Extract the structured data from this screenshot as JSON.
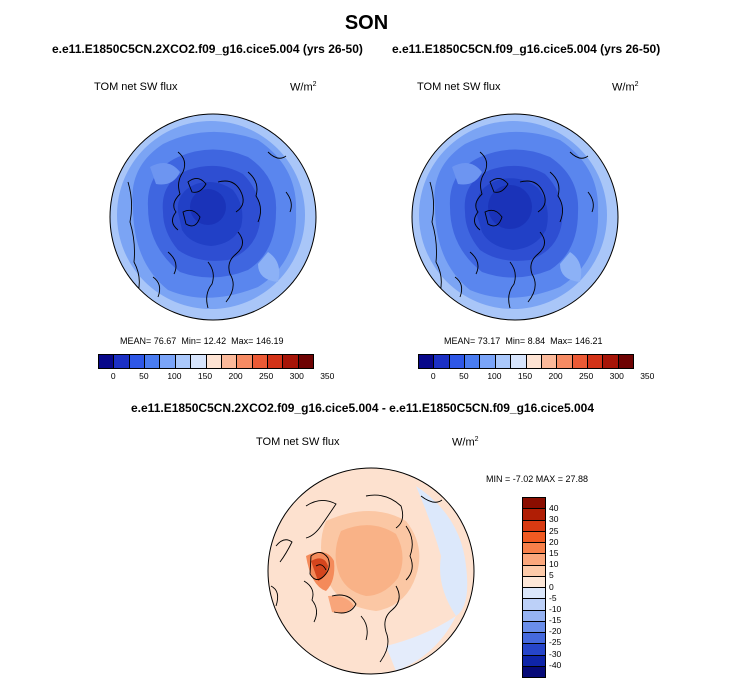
{
  "title": "SON",
  "panels": [
    {
      "case_title": "e.e11.E1850C5CN.2XCO2.f09_g16.cice5.004 (yrs 26-50)",
      "variable": "TOM net SW flux",
      "units_base": "W/m",
      "units_exp": "2",
      "stats": {
        "mean_label": "MEAN=",
        "mean": "76.67",
        "min_label": "Min=",
        "min": "12.42",
        "max_label": "Max=",
        "max": "146.19"
      }
    },
    {
      "case_title": "e.e11.E1850C5CN.f09_g16.cice5.004 (yrs 26-50)",
      "variable": "TOM net SW flux",
      "units_base": "W/m",
      "units_exp": "2",
      "stats": {
        "mean_label": "MEAN=",
        "mean": "73.17",
        "min_label": "Min=",
        "min": "8.84",
        "max_label": "Max=",
        "max": "146.21"
      }
    }
  ],
  "abs_colorbar": {
    "colors": [
      "#08088a",
      "#1c30c4",
      "#2e57e6",
      "#4a7cf0",
      "#7aa4f8",
      "#aac8fb",
      "#d6e4fc",
      "#fde3d3",
      "#fbb99a",
      "#f68b63",
      "#ec5a35",
      "#d33318",
      "#a61508",
      "#6e0303"
    ],
    "tick_labels": [
      "0",
      "50",
      "100",
      "150",
      "200",
      "250",
      "300",
      "350"
    ]
  },
  "diff_panel": {
    "title": "e.e11.E1850C5CN.2XCO2.f09_g16.cice5.004 - e.e11.E1850C5CN.f09_g16.cice5.004",
    "variable": "TOM net SW flux",
    "units_base": "W/m",
    "units_exp": "2",
    "minmax_text": "MIN = -7.02 MAX = 27.88"
  },
  "diff_colorbar": {
    "colors": [
      "#8a0d00",
      "#b01e05",
      "#d83a12",
      "#f05a22",
      "#f7804a",
      "#fba77c",
      "#fdcaa9",
      "#fde7d8",
      "#dbe7fb",
      "#bcd0f8",
      "#95b2f2",
      "#6a8eea",
      "#4569dd",
      "#2645c9",
      "#0e24a8",
      "#060a78"
    ],
    "tick_labels": [
      "40",
      "30",
      "25",
      "20",
      "15",
      "10",
      "5",
      "0",
      "-5",
      "-10",
      "-15",
      "-20",
      "-25",
      "-30",
      "-40"
    ]
  },
  "icons": {
    "map_projection": "north-polar-stereographic"
  }
}
